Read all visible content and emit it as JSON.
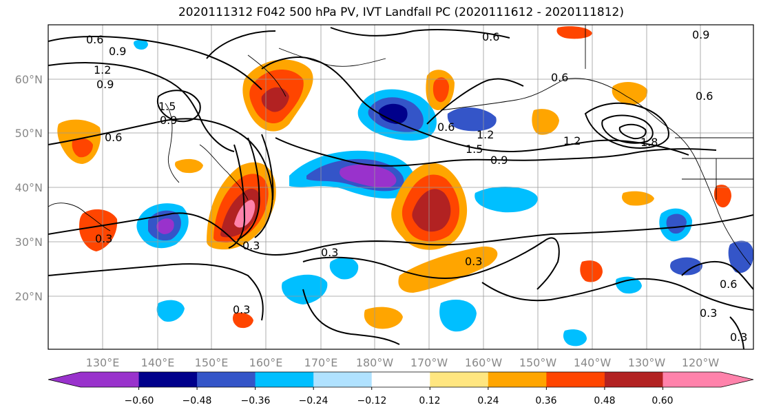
{
  "title": "2020111312 F042 500 hPa PV, IVT Landfall PC (2020111612 - 2020111812)",
  "lat_labels": [
    "60°N",
    "50°N",
    "40°N",
    "30°N",
    "20°N"
  ],
  "lon_labels": [
    "130°E",
    "140°E",
    "150°E",
    "160°E",
    "170°E",
    "180°W",
    "170°W",
    "160°W",
    "150°W",
    "140°W",
    "130°W",
    "120°W"
  ],
  "contour_labels": [
    "0.6",
    "0.9",
    "1.2",
    "0.9",
    "1.5",
    "0.9",
    "0.6",
    "0.6",
    "0.9",
    "0.6",
    "0.6",
    "1.2",
    "1.5",
    "0.9",
    "1.2",
    "1.8",
    "0.6",
    "0.3",
    "0.3",
    "0.3",
    "0.3",
    "0.3",
    "0.3",
    "0.6",
    "0.3"
  ],
  "colorbar": {
    "ticks": [
      "−0.60",
      "−0.48",
      "−0.36",
      "−0.24",
      "−0.12",
      "0.12",
      "0.24",
      "0.36",
      "0.48",
      "0.60"
    ],
    "colors": [
      "#9932cc",
      "#00008b",
      "#3455c8",
      "#00bfff",
      "#b0e2ff",
      "#ffffff",
      "#ffe680",
      "#ffa500",
      "#ff4500",
      "#b22222",
      "#ff82ab"
    ]
  }
}
